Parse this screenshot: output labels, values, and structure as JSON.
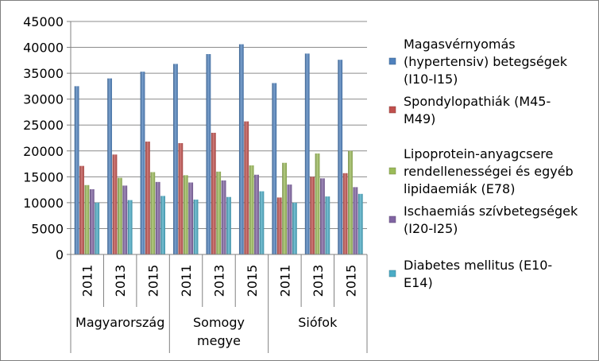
{
  "chart_data": {
    "type": "bar",
    "title": "",
    "xlabel": "",
    "ylabel": "",
    "ylim": [
      0,
      45000
    ],
    "yticks": [
      0,
      5000,
      10000,
      15000,
      20000,
      25000,
      30000,
      35000,
      40000,
      45000
    ],
    "ytick_labels": [
      "0",
      "5000",
      "10000",
      "15000",
      "20000",
      "25000",
      "30000",
      "35000",
      "40000",
      "45000"
    ],
    "grid": true,
    "legend_position": "right",
    "groups": [
      {
        "name": "Magyarország",
        "label_lines": [
          "Magyarország"
        ],
        "years": [
          "2011",
          "2013",
          "2015"
        ]
      },
      {
        "name": "Somogy megye",
        "label_lines": [
          "Somogy",
          "megye"
        ],
        "years": [
          "2011",
          "2013",
          "2015"
        ]
      },
      {
        "name": "Siófok",
        "label_lines": [
          "Siófok"
        ],
        "years": [
          "2011",
          "2013",
          "2015"
        ]
      }
    ],
    "categories": [
      "Magyarország 2011",
      "Magyarország 2013",
      "Magyarország 2015",
      "Somogy megye 2011",
      "Somogy megye 2013",
      "Somogy megye 2015",
      "Siófok 2011",
      "Siófok 2013",
      "Siófok 2015"
    ],
    "series": [
      {
        "name": "Magasvérnyomás (hypertensiv) betegségek (I10-I15)",
        "legend_lines": [
          "Magasvérnyomás",
          "(hypertensiv) betegségek",
          "(I10-I15)"
        ],
        "color": "#4F81BD",
        "values": [
          32500,
          34000,
          35300,
          36800,
          38700,
          40600,
          33100,
          38800,
          37600
        ]
      },
      {
        "name": "Spondylopathiák (M45-M49)",
        "legend_lines": [
          "Spondylopathiák (M45-",
          "M49)"
        ],
        "color": "#C0504D",
        "values": [
          17100,
          19300,
          21800,
          21500,
          23500,
          25700,
          11000,
          15000,
          15700
        ]
      },
      {
        "name": "Lipoprotein-anyagcsere rendellenességei és egyéb lipidaemiák (E78)",
        "legend_lines": [
          "Lipoprotein-anyagcsere",
          "rendellenességei és egyéb",
          "lipidaemiák (E78)"
        ],
        "color": "#9BBB59",
        "values": [
          13400,
          14800,
          15900,
          15300,
          16000,
          17200,
          17700,
          19500,
          20000
        ]
      },
      {
        "name": "Ischaemiás szívbetegségek (I20-I25)",
        "legend_lines": [
          "Ischaemiás szívbetegségek",
          "(I20-I25)"
        ],
        "color": "#8064A2",
        "values": [
          12600,
          13300,
          14000,
          13900,
          14300,
          15400,
          13500,
          14700,
          13000
        ]
      },
      {
        "name": "Diabetes mellitus (E10-E14)",
        "legend_lines": [
          "Diabetes mellitus (E10-",
          "E14)"
        ],
        "color": "#4BACC6",
        "values": [
          10000,
          10500,
          11300,
          10600,
          11100,
          12200,
          10000,
          11200,
          11700
        ]
      }
    ]
  }
}
